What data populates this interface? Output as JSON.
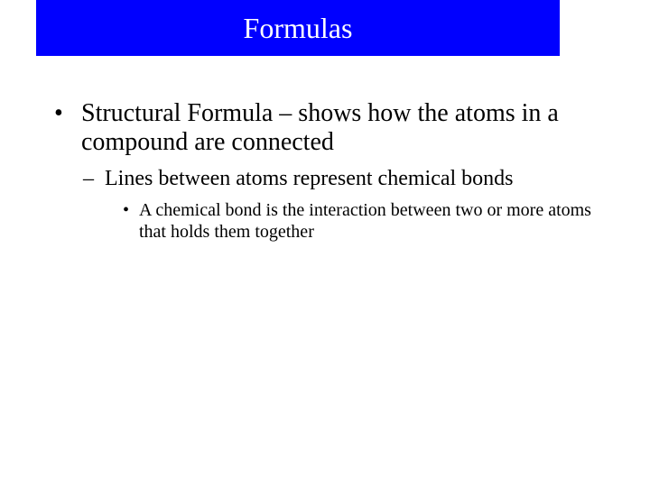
{
  "title": "Formulas",
  "colors": {
    "title_bar_bg": "#0000ff",
    "title_text": "#ffffff",
    "body_text": "#000000",
    "page_bg": "#ffffff"
  },
  "typography": {
    "font_family": "Times New Roman",
    "title_fontsize": 32,
    "level1_fontsize": 28,
    "level2_fontsize": 24,
    "level3_fontsize": 20
  },
  "bullets": {
    "level1_glyph": "•",
    "level2_glyph": "–",
    "level3_glyph": "•"
  },
  "content": {
    "level1": "Structural Formula – shows how the atoms in a compound are connected",
    "level2": "Lines between atoms represent chemical bonds",
    "level3": "A chemical bond is the interaction between two or more atoms that holds them together"
  }
}
